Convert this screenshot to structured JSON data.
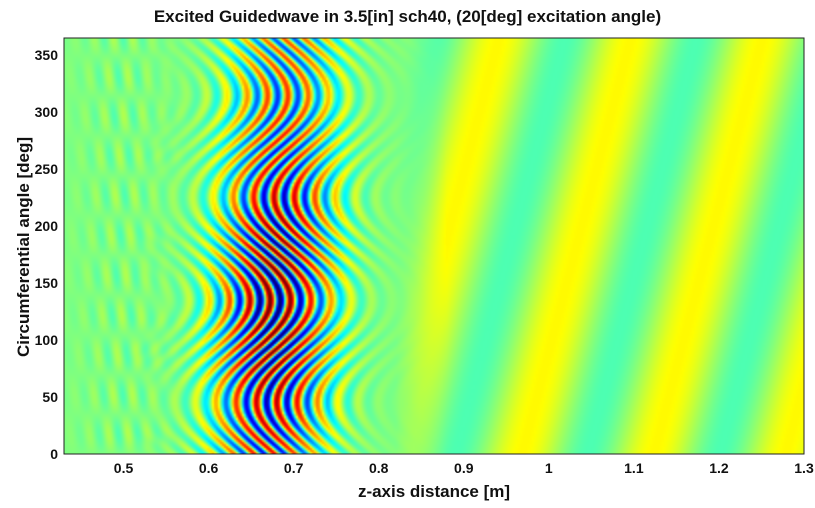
{
  "chart_data": {
    "type": "heatmap",
    "title": "Excited Guidedwave in 3.5[in] sch40, (20[deg] excitation angle)",
    "xlabel": "z-axis distance [m]",
    "ylabel": "Circumferential angle [deg]",
    "xlim": [
      0.43,
      1.3
    ],
    "ylim": [
      0,
      365
    ],
    "xticks": [
      "0.5",
      "0.6",
      "0.7",
      "0.8",
      "0.9",
      "1",
      "1.1",
      "1.2",
      "1.3"
    ],
    "yticks": [
      "0",
      "50",
      "100",
      "150",
      "200",
      "250",
      "300",
      "350"
    ],
    "colormap": "jet",
    "wave_packet": {
      "z_center_at_0deg": 0.67,
      "z_shift_at_360deg": 0.02,
      "z_halfwidth": 0.075,
      "strongest_angle_deg": 130,
      "wavelength_m": 0.024
    },
    "background": "weak oscillation (green to yellow) for z > 0.85",
    "grid": false,
    "legend": "none",
    "colors": {
      "negative": "#00007f",
      "zero": "#3cc8c8",
      "positive": "#7f0000"
    }
  }
}
